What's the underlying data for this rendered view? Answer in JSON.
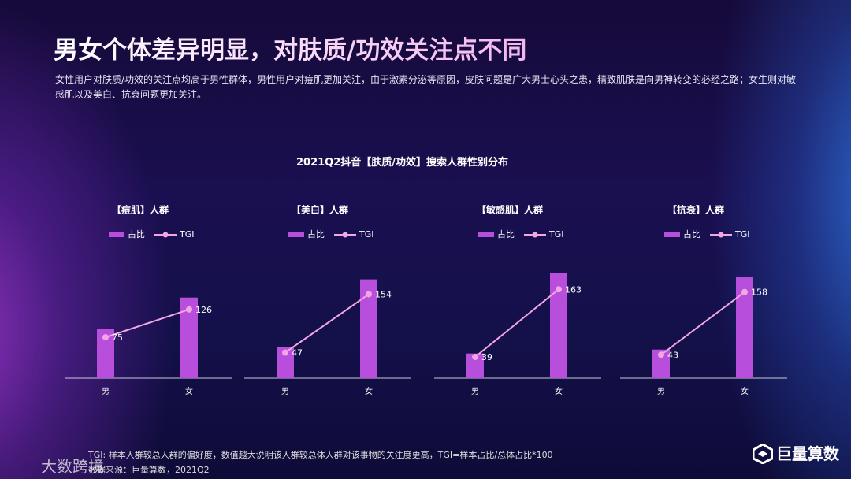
{
  "title": "男女个体差异明显，对肤质/功效关注点不同",
  "description": "女性用户对肤质/功效的关注点均高于男性群体，男性用户对痘肌更加关注，由于激素分泌等原因，皮肤问题是广大男士心头之患，精致肌肤是向男神转变的必经之路；女生则对敏感肌以及美白、抗衰问题更加关注。",
  "chart_group_title": "2021Q2抖音【肤质/功效】搜索人群性别分布",
  "footnotes": [
    "TGI: 样本人群较总人群的偏好度，数值越大说明该人群较总体人群对该事物的关注度更高，TGI=样本占比/总体占比*100",
    "数据来源：巨量算数，2021Q2"
  ],
  "logo": "巨量算数",
  "watermark": "大数跨境",
  "chart_data": [
    {
      "type": "bar_line",
      "title": "【痘肌】人群",
      "categories": [
        "男",
        "女"
      ],
      "ylim": [
        0,
        100
      ],
      "y2lim": [
        0,
        240
      ],
      "series": [
        {
          "name": "占比",
          "color": "#b84fdc",
          "values": [
            38,
            62
          ]
        },
        {
          "name": "TGI",
          "color": "#f2a6e2",
          "axis": "y2",
          "values": [
            75,
            126
          ]
        }
      ]
    },
    {
      "type": "bar_line",
      "title": "【美白】人群",
      "categories": [
        "男",
        "女"
      ],
      "ylim": [
        0,
        100
      ],
      "y2lim": [
        0,
        240
      ],
      "series": [
        {
          "name": "占比",
          "color": "#b84fdc",
          "values": [
            24,
            76
          ]
        },
        {
          "name": "TGI",
          "color": "#f2a6e2",
          "axis": "y2",
          "values": [
            47,
            154
          ]
        }
      ]
    },
    {
      "type": "bar_line",
      "title": "【敏感肌】人群",
      "categories": [
        "男",
        "女"
      ],
      "ylim": [
        0,
        100
      ],
      "y2lim": [
        0,
        240
      ],
      "series": [
        {
          "name": "占比",
          "color": "#b84fdc",
          "values": [
            19,
            81
          ]
        },
        {
          "name": "TGI",
          "color": "#f2a6e2",
          "axis": "y2",
          "values": [
            39,
            163
          ]
        }
      ]
    },
    {
      "type": "bar_line",
      "title": "【抗衰】人群",
      "categories": [
        "男",
        "女"
      ],
      "ylim": [
        0,
        100
      ],
      "y2lim": [
        0,
        240
      ],
      "series": [
        {
          "name": "占比",
          "color": "#b84fdc",
          "values": [
            22,
            78
          ]
        },
        {
          "name": "TGI",
          "color": "#f2a6e2",
          "axis": "y2",
          "values": [
            43,
            158
          ]
        }
      ]
    }
  ]
}
